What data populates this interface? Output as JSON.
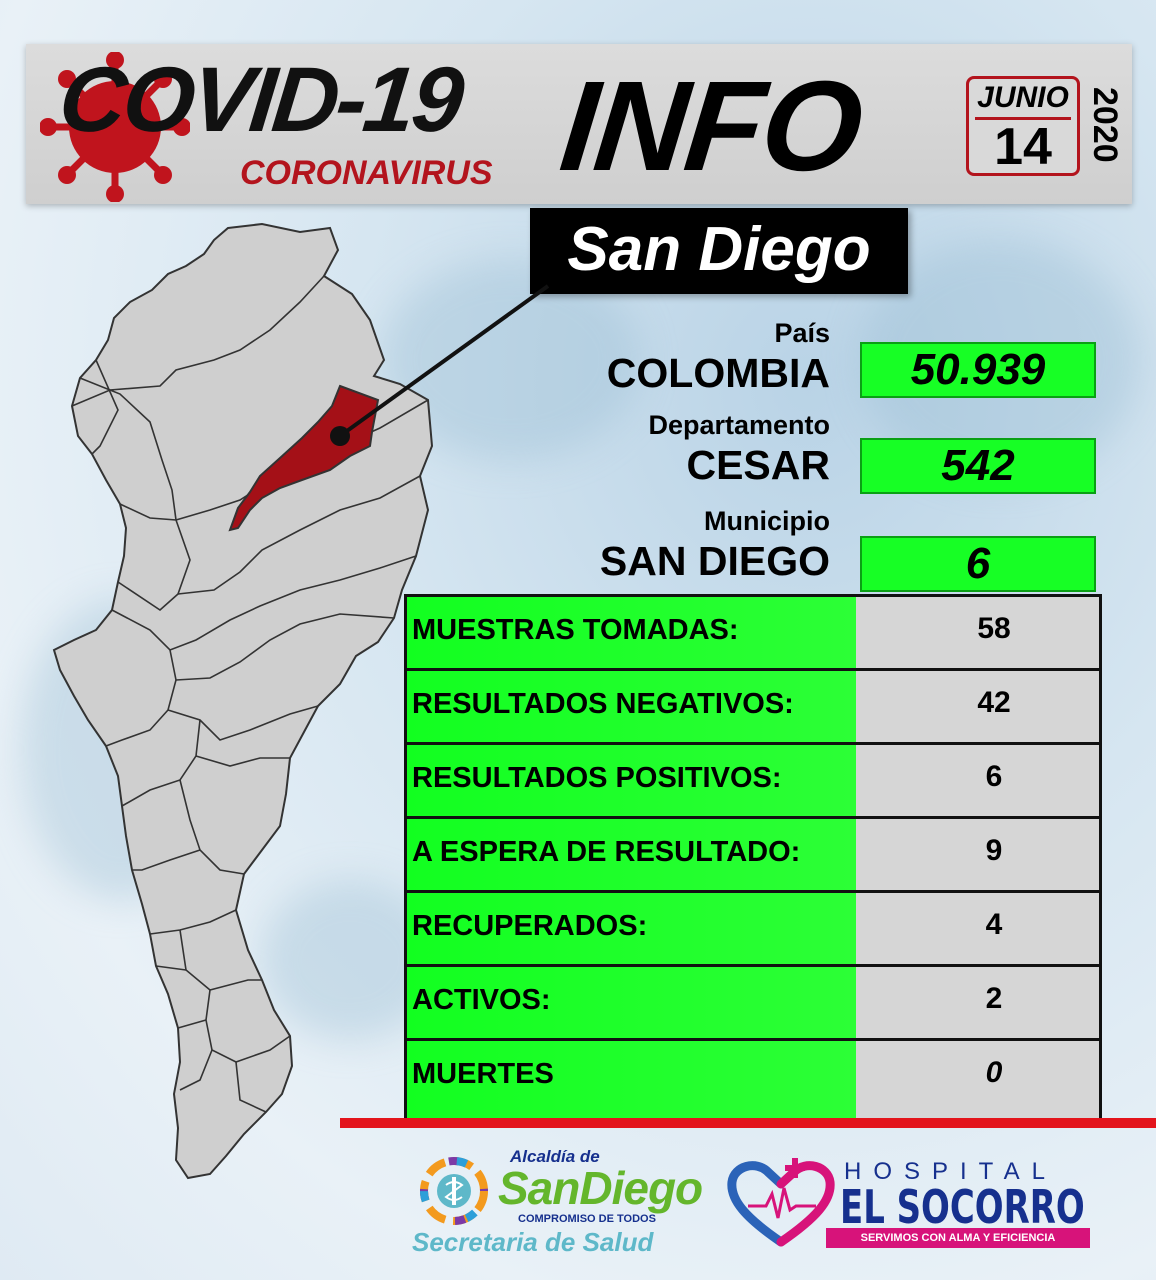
{
  "header": {
    "title_covid": "COVID-19",
    "subtitle": "CORONAVIRUS",
    "title_info": "INFO",
    "date": {
      "month": "JUNIO",
      "day": "14",
      "year": "2020"
    },
    "location_label": "San Diego"
  },
  "summary": {
    "country": {
      "caption": "País",
      "name": "COLOMBIA",
      "value": "50.939"
    },
    "department": {
      "caption": "Departamento",
      "name": "CESAR",
      "value": "542"
    },
    "municipality": {
      "caption": "Municipio",
      "name": "SAN DIEGO",
      "value": "6"
    }
  },
  "stats": [
    {
      "label": "MUESTRAS TOMADAS:",
      "value": "58"
    },
    {
      "label": "RESULTADOS NEGATIVOS:",
      "value": "42"
    },
    {
      "label": "RESULTADOS POSITIVOS:",
      "value": "6"
    },
    {
      "label": "A ESPERA DE RESULTADO:",
      "value": "9"
    },
    {
      "label": "RECUPERADOS:",
      "value": "4"
    },
    {
      "label": "ACTIVOS:",
      "value": "2"
    },
    {
      "label": "MUERTES",
      "value": "0"
    }
  ],
  "footer": {
    "alcaldia": {
      "small": "Alcaldía de",
      "name": "SanDiego",
      "motto": "COMPROMISO DE TODOS",
      "secretaria": "Secretaria de Salud"
    },
    "hospital": {
      "word": "HOSPITAL",
      "name": "EL SOCORRO",
      "motto": "SERVIMOS CON ALMA Y EFICIENCIA"
    }
  },
  "colors": {
    "accent_red": "#b3141d",
    "highlight_green": "#17ff25",
    "map_gray": "#cfcfcf",
    "map_highlight": "#a41017"
  }
}
